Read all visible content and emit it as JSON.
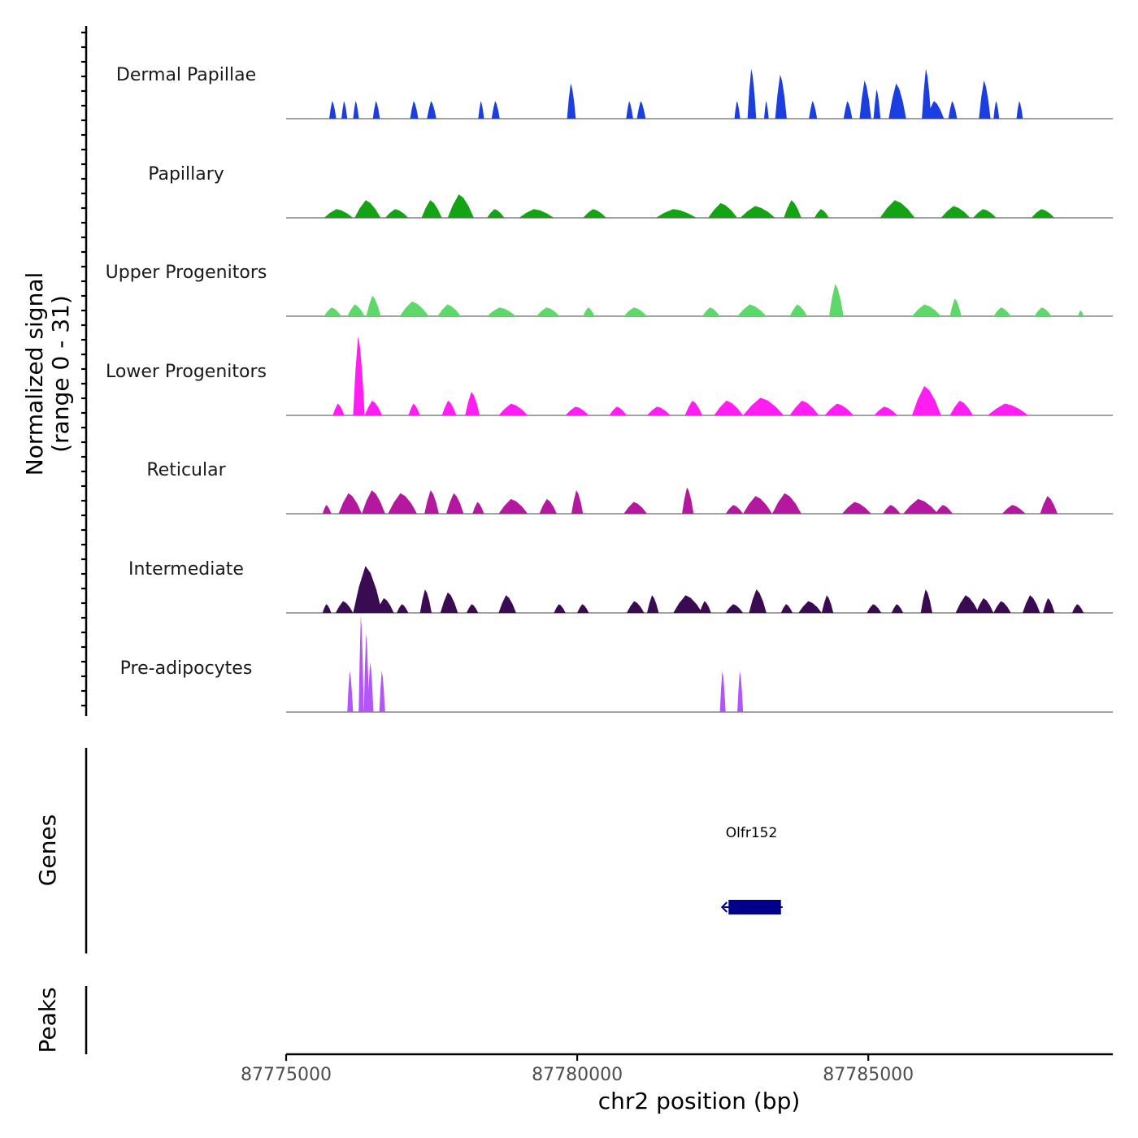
{
  "chart_data": {
    "type": "area",
    "title": "",
    "ylabel": "Normalized signal",
    "ylabel_range": "(range 0 - 31)",
    "xlabel": "chr2 position (bp)",
    "chromosome": "chr2",
    "xlim": [
      87775000,
      87789200
    ],
    "ylim": [
      0,
      31
    ],
    "xticks": [
      87775000,
      87780000,
      87785000
    ],
    "xtick_labels": [
      "87775000",
      "87780000",
      "87785000"
    ],
    "grid": false,
    "tracks": [
      {
        "name": "Dermal Papillae",
        "color": "#1a3ee0",
        "peaks": [
          {
            "x": 87775800,
            "w": 120,
            "h": 6
          },
          {
            "x": 87776000,
            "w": 100,
            "h": 6
          },
          {
            "x": 87776200,
            "w": 100,
            "h": 6
          },
          {
            "x": 87776550,
            "w": 120,
            "h": 6
          },
          {
            "x": 87777200,
            "w": 140,
            "h": 6
          },
          {
            "x": 87777500,
            "w": 160,
            "h": 6
          },
          {
            "x": 87778350,
            "w": 100,
            "h": 6
          },
          {
            "x": 87778600,
            "w": 140,
            "h": 6
          },
          {
            "x": 87779900,
            "w": 150,
            "h": 12
          },
          {
            "x": 87780900,
            "w": 120,
            "h": 6
          },
          {
            "x": 87781100,
            "w": 150,
            "h": 6
          },
          {
            "x": 87782750,
            "w": 100,
            "h": 6
          },
          {
            "x": 87783000,
            "w": 150,
            "h": 17
          },
          {
            "x": 87783250,
            "w": 80,
            "h": 6
          },
          {
            "x": 87783500,
            "w": 200,
            "h": 15
          },
          {
            "x": 87784050,
            "w": 140,
            "h": 6
          },
          {
            "x": 87784650,
            "w": 150,
            "h": 6
          },
          {
            "x": 87784950,
            "w": 200,
            "h": 13
          },
          {
            "x": 87785150,
            "w": 120,
            "h": 10
          },
          {
            "x": 87785500,
            "w": 300,
            "h": 12
          },
          {
            "x": 87786000,
            "w": 160,
            "h": 17
          },
          {
            "x": 87786150,
            "w": 300,
            "h": 6
          },
          {
            "x": 87786450,
            "w": 150,
            "h": 6
          },
          {
            "x": 87787000,
            "w": 200,
            "h": 13
          },
          {
            "x": 87787200,
            "w": 100,
            "h": 6
          },
          {
            "x": 87787600,
            "w": 110,
            "h": 6
          }
        ]
      },
      {
        "name": "Papillary",
        "color": "#14a314",
        "peaks": [
          {
            "x": 87775900,
            "w": 500,
            "h": 3
          },
          {
            "x": 87776400,
            "w": 450,
            "h": 6
          },
          {
            "x": 87776900,
            "w": 400,
            "h": 3
          },
          {
            "x": 87777500,
            "w": 350,
            "h": 6
          },
          {
            "x": 87778000,
            "w": 450,
            "h": 8
          },
          {
            "x": 87778600,
            "w": 300,
            "h": 3
          },
          {
            "x": 87779300,
            "w": 600,
            "h": 3
          },
          {
            "x": 87780300,
            "w": 400,
            "h": 3
          },
          {
            "x": 87781700,
            "w": 700,
            "h": 3
          },
          {
            "x": 87782500,
            "w": 500,
            "h": 5
          },
          {
            "x": 87783100,
            "w": 600,
            "h": 4
          },
          {
            "x": 87783700,
            "w": 300,
            "h": 6
          },
          {
            "x": 87784200,
            "w": 250,
            "h": 3
          },
          {
            "x": 87785500,
            "w": 600,
            "h": 6
          },
          {
            "x": 87786500,
            "w": 500,
            "h": 4
          },
          {
            "x": 87787000,
            "w": 400,
            "h": 3
          },
          {
            "x": 87788000,
            "w": 400,
            "h": 3
          }
        ]
      },
      {
        "name": "Upper Progenitors",
        "color": "#5ed86a",
        "peaks": [
          {
            "x": 87775800,
            "w": 300,
            "h": 3
          },
          {
            "x": 87776200,
            "w": 300,
            "h": 4
          },
          {
            "x": 87776500,
            "w": 250,
            "h": 7
          },
          {
            "x": 87777200,
            "w": 500,
            "h": 5
          },
          {
            "x": 87777800,
            "w": 400,
            "h": 4
          },
          {
            "x": 87778700,
            "w": 500,
            "h": 3
          },
          {
            "x": 87779500,
            "w": 400,
            "h": 3
          },
          {
            "x": 87780200,
            "w": 200,
            "h": 3
          },
          {
            "x": 87781000,
            "w": 400,
            "h": 3
          },
          {
            "x": 87782300,
            "w": 300,
            "h": 3
          },
          {
            "x": 87783000,
            "w": 500,
            "h": 4
          },
          {
            "x": 87783800,
            "w": 300,
            "h": 4
          },
          {
            "x": 87784450,
            "w": 250,
            "h": 11
          },
          {
            "x": 87786000,
            "w": 500,
            "h": 4
          },
          {
            "x": 87786500,
            "w": 200,
            "h": 6
          },
          {
            "x": 87787300,
            "w": 300,
            "h": 3
          },
          {
            "x": 87788000,
            "w": 300,
            "h": 3
          },
          {
            "x": 87788650,
            "w": 100,
            "h": 2
          }
        ]
      },
      {
        "name": "Lower Progenitors",
        "color": "#ff1ef2",
        "peaks": [
          {
            "x": 87775900,
            "w": 200,
            "h": 4
          },
          {
            "x": 87776250,
            "w": 200,
            "h": 27
          },
          {
            "x": 87776500,
            "w": 300,
            "h": 5
          },
          {
            "x": 87777200,
            "w": 200,
            "h": 4
          },
          {
            "x": 87777800,
            "w": 250,
            "h": 5
          },
          {
            "x": 87778200,
            "w": 250,
            "h": 8
          },
          {
            "x": 87778900,
            "w": 500,
            "h": 4
          },
          {
            "x": 87780000,
            "w": 400,
            "h": 3
          },
          {
            "x": 87780700,
            "w": 300,
            "h": 3
          },
          {
            "x": 87781400,
            "w": 400,
            "h": 3
          },
          {
            "x": 87782000,
            "w": 300,
            "h": 5
          },
          {
            "x": 87782600,
            "w": 500,
            "h": 5
          },
          {
            "x": 87783200,
            "w": 700,
            "h": 6
          },
          {
            "x": 87783900,
            "w": 500,
            "h": 5
          },
          {
            "x": 87784500,
            "w": 500,
            "h": 4
          },
          {
            "x": 87785300,
            "w": 400,
            "h": 3
          },
          {
            "x": 87786000,
            "w": 500,
            "h": 10
          },
          {
            "x": 87786600,
            "w": 400,
            "h": 5
          },
          {
            "x": 87787400,
            "w": 700,
            "h": 4
          }
        ]
      },
      {
        "name": "Reticular",
        "color": "#b4189f",
        "peaks": [
          {
            "x": 87775700,
            "w": 150,
            "h": 3
          },
          {
            "x": 87776100,
            "w": 400,
            "h": 7
          },
          {
            "x": 87776500,
            "w": 400,
            "h": 8
          },
          {
            "x": 87777000,
            "w": 500,
            "h": 7
          },
          {
            "x": 87777500,
            "w": 250,
            "h": 8
          },
          {
            "x": 87777900,
            "w": 300,
            "h": 7
          },
          {
            "x": 87778300,
            "w": 200,
            "h": 4
          },
          {
            "x": 87778900,
            "w": 500,
            "h": 5
          },
          {
            "x": 87779500,
            "w": 300,
            "h": 5
          },
          {
            "x": 87780000,
            "w": 200,
            "h": 8
          },
          {
            "x": 87781000,
            "w": 400,
            "h": 4
          },
          {
            "x": 87781900,
            "w": 200,
            "h": 9
          },
          {
            "x": 87782700,
            "w": 300,
            "h": 3
          },
          {
            "x": 87783100,
            "w": 500,
            "h": 6
          },
          {
            "x": 87783600,
            "w": 500,
            "h": 7
          },
          {
            "x": 87784800,
            "w": 500,
            "h": 4
          },
          {
            "x": 87785400,
            "w": 300,
            "h": 3
          },
          {
            "x": 87785900,
            "w": 600,
            "h": 5
          },
          {
            "x": 87786300,
            "w": 300,
            "h": 3
          },
          {
            "x": 87787500,
            "w": 400,
            "h": 3
          },
          {
            "x": 87788100,
            "w": 300,
            "h": 6
          }
        ]
      },
      {
        "name": "Intermediate",
        "color": "#3a0a52",
        "peaks": [
          {
            "x": 87775700,
            "w": 150,
            "h": 3
          },
          {
            "x": 87776000,
            "w": 300,
            "h": 4
          },
          {
            "x": 87776400,
            "w": 500,
            "h": 16
          },
          {
            "x": 87776700,
            "w": 300,
            "h": 5
          },
          {
            "x": 87777000,
            "w": 200,
            "h": 3
          },
          {
            "x": 87777400,
            "w": 200,
            "h": 8
          },
          {
            "x": 87777800,
            "w": 300,
            "h": 7
          },
          {
            "x": 87778200,
            "w": 200,
            "h": 3
          },
          {
            "x": 87778800,
            "w": 300,
            "h": 6
          },
          {
            "x": 87779700,
            "w": 200,
            "h": 3
          },
          {
            "x": 87780100,
            "w": 200,
            "h": 3
          },
          {
            "x": 87781000,
            "w": 300,
            "h": 4
          },
          {
            "x": 87781300,
            "w": 200,
            "h": 6
          },
          {
            "x": 87781900,
            "w": 500,
            "h": 6
          },
          {
            "x": 87782200,
            "w": 200,
            "h": 4
          },
          {
            "x": 87782700,
            "w": 300,
            "h": 3
          },
          {
            "x": 87783100,
            "w": 300,
            "h": 8
          },
          {
            "x": 87783600,
            "w": 200,
            "h": 3
          },
          {
            "x": 87784000,
            "w": 400,
            "h": 4
          },
          {
            "x": 87784300,
            "w": 200,
            "h": 6
          },
          {
            "x": 87785100,
            "w": 250,
            "h": 3
          },
          {
            "x": 87785500,
            "w": 200,
            "h": 3
          },
          {
            "x": 87786000,
            "w": 200,
            "h": 8
          },
          {
            "x": 87786700,
            "w": 400,
            "h": 6
          },
          {
            "x": 87787000,
            "w": 300,
            "h": 5
          },
          {
            "x": 87787300,
            "w": 300,
            "h": 4
          },
          {
            "x": 87787800,
            "w": 300,
            "h": 6
          },
          {
            "x": 87788100,
            "w": 200,
            "h": 5
          },
          {
            "x": 87788600,
            "w": 200,
            "h": 3
          }
        ]
      },
      {
        "name": "Pre-adipocytes",
        "color": "#b256f5",
        "peaks": [
          {
            "x": 87776100,
            "w": 100,
            "h": 14
          },
          {
            "x": 87776290,
            "w": 90,
            "h": 33
          },
          {
            "x": 87776380,
            "w": 90,
            "h": 27
          },
          {
            "x": 87776450,
            "w": 100,
            "h": 17
          },
          {
            "x": 87776650,
            "w": 100,
            "h": 14
          },
          {
            "x": 87782500,
            "w": 100,
            "h": 14
          },
          {
            "x": 87782800,
            "w": 100,
            "h": 14
          }
        ]
      }
    ],
    "genes": [
      {
        "name": "Olfr152",
        "start": 87782600,
        "end": 87783500,
        "strand": "-"
      }
    ],
    "panel_labels": {
      "genes": "Genes",
      "peaks": "Peaks"
    },
    "colors": {
      "gene": "#00008b",
      "baseline": "#6b6b6b"
    }
  }
}
